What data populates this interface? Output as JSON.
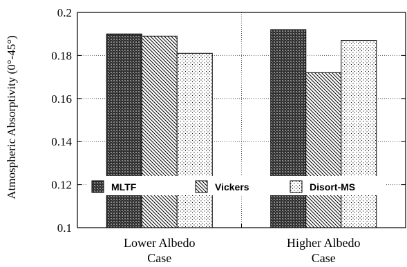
{
  "chart_data": {
    "type": "bar",
    "ylabel": "Atmospheric Absorptivity (0°-45°)",
    "ylim": [
      0.1,
      0.2
    ],
    "yticks": [
      "0.1",
      "0.12",
      "0.14",
      "0.16",
      "0.18",
      "0.2"
    ],
    "categories": [
      [
        "Lower Albedo",
        "Case"
      ],
      [
        "Higher Albedo",
        "Case"
      ]
    ],
    "series": [
      {
        "name": "MLTF",
        "values": [
          0.19,
          0.192
        ],
        "pattern": "dark-crosshatch"
      },
      {
        "name": "Vickers",
        "values": [
          0.189,
          0.172
        ],
        "pattern": "diagonal-hatch"
      },
      {
        "name": "Disort-MS",
        "values": [
          0.181,
          0.187
        ],
        "pattern": "dots"
      }
    ],
    "grid": "dotted",
    "legend_position": "bottom-inside"
  }
}
